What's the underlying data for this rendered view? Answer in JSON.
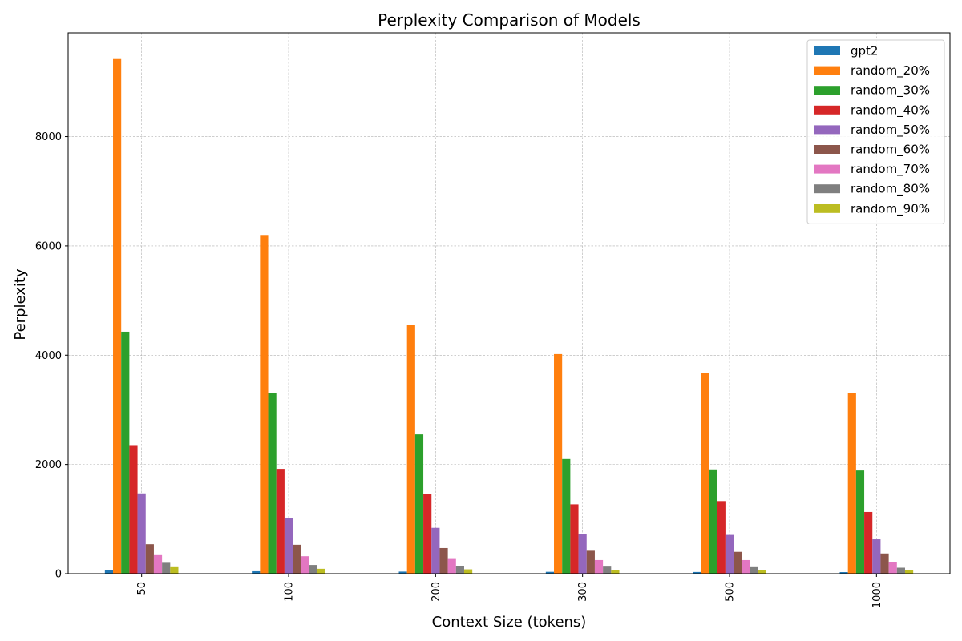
{
  "chart_data": {
    "type": "bar",
    "title": "Perplexity Comparison of Models",
    "xlabel": "Context Size (tokens)",
    "ylabel": "Perplexity",
    "categories": [
      "50",
      "100",
      "200",
      "300",
      "500",
      "1000"
    ],
    "ylim": [
      0,
      9900
    ],
    "yticks": [
      0,
      2000,
      4000,
      6000,
      8000
    ],
    "grid": true,
    "legend_position": "top-right",
    "series": [
      {
        "name": "gpt2",
        "color": "#1f77b4",
        "values": [
          60,
          45,
          38,
          34,
          31,
          29
        ]
      },
      {
        "name": "random_20%",
        "color": "#ff7f0e",
        "values": [
          9420,
          6200,
          4550,
          4020,
          3670,
          3300
        ]
      },
      {
        "name": "random_30%",
        "color": "#2ca02c",
        "values": [
          4430,
          3300,
          2550,
          2100,
          1910,
          1890
        ]
      },
      {
        "name": "random_40%",
        "color": "#d62728",
        "values": [
          2340,
          1920,
          1460,
          1270,
          1330,
          1130
        ]
      },
      {
        "name": "random_50%",
        "color": "#9467bd",
        "values": [
          1470,
          1020,
          840,
          730,
          710,
          630
        ]
      },
      {
        "name": "random_60%",
        "color": "#8c564b",
        "values": [
          540,
          530,
          470,
          420,
          400,
          370
        ]
      },
      {
        "name": "random_70%",
        "color": "#e377c2",
        "values": [
          340,
          320,
          270,
          250,
          250,
          220
        ]
      },
      {
        "name": "random_80%",
        "color": "#7f7f7f",
        "values": [
          200,
          160,
          140,
          130,
          120,
          110
        ]
      },
      {
        "name": "random_90%",
        "color": "#bcbd22",
        "values": [
          120,
          90,
          80,
          70,
          65,
          60
        ]
      }
    ]
  }
}
